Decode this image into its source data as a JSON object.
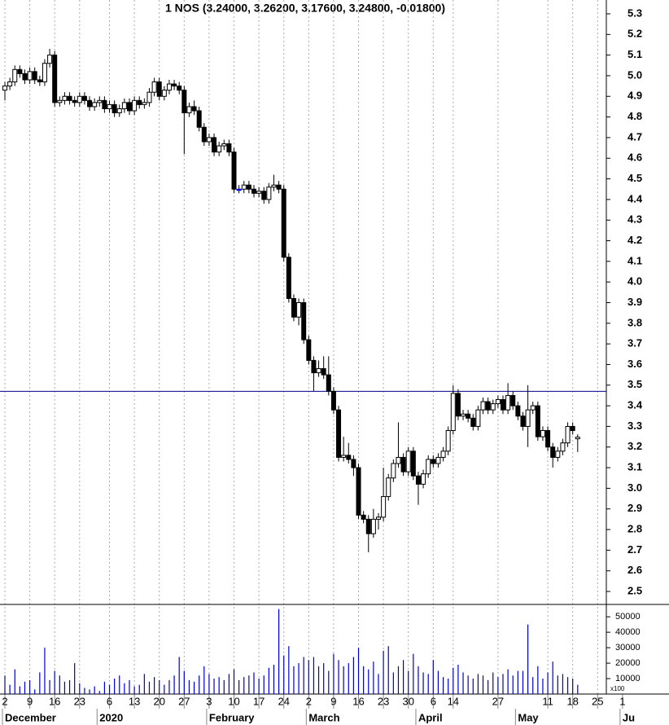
{
  "chart_data": {
    "type": "candlestick",
    "title": "1 NOS (3.24000, 3.26200, 3.17600, 3.24800, -0.01800)",
    "categories": [
      "2",
      null,
      null,
      null,
      null,
      "9",
      null,
      null,
      null,
      null,
      "16",
      null,
      null,
      null,
      null,
      "23",
      null,
      null,
      null,
      null,
      null,
      "6",
      null,
      null,
      null,
      null,
      "13",
      null,
      null,
      null,
      null,
      "20",
      null,
      null,
      null,
      null,
      "27",
      null,
      null,
      null,
      null,
      "3",
      null,
      null,
      null,
      null,
      "10",
      null,
      null,
      null,
      null,
      "17",
      null,
      null,
      null,
      null,
      "24",
      null,
      null,
      null,
      null,
      "2",
      null,
      null,
      null,
      null,
      "9",
      null,
      null,
      null,
      null,
      "16",
      null,
      null,
      null,
      null,
      "23",
      null,
      null,
      null,
      null,
      "30",
      null,
      null,
      null,
      null,
      "6",
      null,
      null,
      null,
      "14",
      null,
      null,
      null,
      null,
      null,
      null,
      null,
      null,
      "27",
      null,
      null,
      null,
      null,
      null,
      null,
      null,
      null,
      null,
      "11",
      null,
      null,
      null,
      null,
      "18",
      null,
      null,
      null,
      null,
      "25",
      null,
      null,
      null,
      null,
      "1"
    ],
    "month_categories": [
      "December",
      null,
      null,
      null,
      null,
      null,
      null,
      null,
      null,
      null,
      null,
      null,
      null,
      null,
      null,
      null,
      null,
      null,
      null,
      "2020",
      null,
      null,
      null,
      null,
      null,
      null,
      null,
      null,
      null,
      null,
      null,
      null,
      null,
      null,
      null,
      null,
      null,
      null,
      null,
      null,
      null,
      "February",
      null,
      null,
      null,
      null,
      null,
      null,
      null,
      null,
      null,
      null,
      null,
      null,
      null,
      null,
      null,
      null,
      null,
      null,
      null,
      "March",
      null,
      null,
      null,
      null,
      null,
      null,
      null,
      null,
      null,
      null,
      null,
      null,
      null,
      null,
      null,
      null,
      null,
      null,
      null,
      null,
      null,
      "April",
      null,
      null,
      null,
      null,
      null,
      null,
      null,
      null,
      null,
      null,
      null,
      null,
      null,
      null,
      null,
      null,
      null,
      null,
      null,
      "May",
      null,
      null,
      null,
      null,
      null,
      null,
      null,
      null,
      null,
      null,
      null,
      null,
      null,
      null,
      null,
      null,
      null,
      null,
      null,
      null,
      "Ju"
    ],
    "open": [
      4.93,
      4.95,
      4.97,
      5.03,
      5.01,
      4.98,
      5.02,
      4.98,
      4.97,
      5.06,
      5.1,
      4.87,
      4.88,
      4.9,
      4.88,
      4.87,
      4.9,
      4.88,
      4.85,
      4.87,
      4.88,
      4.84,
      4.86,
      4.82,
      4.84,
      4.87,
      4.83,
      4.88,
      4.86,
      4.87,
      4.92,
      4.97,
      4.9,
      4.93,
      4.96,
      4.95,
      4.93,
      4.82,
      4.85,
      4.83,
      4.75,
      4.68,
      4.7,
      4.63,
      4.66,
      4.67,
      4.63,
      4.45,
      4.45,
      4.47,
      4.45,
      4.43,
      4.44,
      4.4,
      4.46,
      4.47,
      4.45,
      4.12,
      3.92,
      3.83,
      3.9,
      3.72,
      3.62,
      3.56,
      3.58,
      3.55,
      3.47,
      3.38,
      3.15,
      3.16,
      3.14,
      3.1,
      2.87,
      2.85,
      2.78,
      2.85,
      2.86,
      2.96,
      3.05,
      3.12,
      3.15,
      3.08,
      3.18,
      3.06,
      3.02,
      3.07,
      3.14,
      3.12,
      3.15,
      3.18,
      3.28,
      3.46,
      3.35,
      3.36,
      3.34,
      3.3,
      3.38,
      3.42,
      3.38,
      3.41,
      3.43,
      3.38,
      3.45,
      3.4,
      3.35,
      3.3,
      3.38,
      3.4,
      3.25,
      3.28,
      3.2,
      3.15,
      3.18,
      3.22,
      3.3,
      3.24,
      null,
      null,
      null,
      null,
      null,
      null,
      null,
      null,
      null
    ],
    "high": [
      4.97,
      4.99,
      5.05,
      5.05,
      5.03,
      5.04,
      5.04,
      5.0,
      5.08,
      5.13,
      5.12,
      4.9,
      4.92,
      4.92,
      4.9,
      4.92,
      4.92,
      4.9,
      4.89,
      4.9,
      4.9,
      4.88,
      4.88,
      4.86,
      4.89,
      4.89,
      4.9,
      4.9,
      4.89,
      4.94,
      4.99,
      4.99,
      4.95,
      4.98,
      4.98,
      4.97,
      4.95,
      4.87,
      4.88,
      4.85,
      4.77,
      4.72,
      4.72,
      4.68,
      4.69,
      4.69,
      4.65,
      4.47,
      4.49,
      4.49,
      4.47,
      4.46,
      4.46,
      4.48,
      4.52,
      4.49,
      4.47,
      4.14,
      3.94,
      3.92,
      3.92,
      3.74,
      3.64,
      3.62,
      3.64,
      3.64,
      3.49,
      3.4,
      3.25,
      3.22,
      3.16,
      3.12,
      2.89,
      2.87,
      2.9,
      2.88,
      3.1,
      3.07,
      3.14,
      3.32,
      3.17,
      3.2,
      3.2,
      3.08,
      3.09,
      3.16,
      3.16,
      3.17,
      3.2,
      3.3,
      3.5,
      3.48,
      3.38,
      3.38,
      3.36,
      3.4,
      3.44,
      3.44,
      3.43,
      3.45,
      3.45,
      3.51,
      3.47,
      3.42,
      3.37,
      3.5,
      3.42,
      3.42,
      3.3,
      3.3,
      3.22,
      3.2,
      3.24,
      3.32,
      3.32,
      3.262,
      null,
      null,
      null,
      null,
      null,
      null,
      null,
      null,
      null
    ],
    "low": [
      4.88,
      4.93,
      4.95,
      4.99,
      4.96,
      4.96,
      4.96,
      4.95,
      4.95,
      5.04,
      4.85,
      4.85,
      4.86,
      4.86,
      4.85,
      4.85,
      4.86,
      4.83,
      4.83,
      4.85,
      4.82,
      4.82,
      4.8,
      4.8,
      4.82,
      4.81,
      4.81,
      4.84,
      4.84,
      4.85,
      4.9,
      4.88,
      4.88,
      4.91,
      4.93,
      4.91,
      4.62,
      4.8,
      4.81,
      4.73,
      4.66,
      4.66,
      4.61,
      4.61,
      4.64,
      4.61,
      4.43,
      4.43,
      4.43,
      4.43,
      4.41,
      4.41,
      4.38,
      4.38,
      4.44,
      4.43,
      4.1,
      3.9,
      3.81,
      3.79,
      3.7,
      3.6,
      3.47,
      3.54,
      3.53,
      3.45,
      3.36,
      3.13,
      3.13,
      3.12,
      3.06,
      2.85,
      2.83,
      2.69,
      2.76,
      2.8,
      2.84,
      2.94,
      3.03,
      3.1,
      3.06,
      3.06,
      3.04,
      2.92,
      3.0,
      3.05,
      3.1,
      3.1,
      3.13,
      3.16,
      3.26,
      3.33,
      3.33,
      3.32,
      3.28,
      3.28,
      3.36,
      3.36,
      3.36,
      3.39,
      3.36,
      3.36,
      3.38,
      3.33,
      3.28,
      3.2,
      3.36,
      3.23,
      3.23,
      3.18,
      3.1,
      3.13,
      3.16,
      3.2,
      3.26,
      3.176,
      null,
      null,
      null,
      null,
      null,
      null,
      null,
      null,
      null
    ],
    "close": [
      4.95,
      4.97,
      5.03,
      5.01,
      4.98,
      5.02,
      4.98,
      4.97,
      5.06,
      5.1,
      4.87,
      4.88,
      4.9,
      4.88,
      4.87,
      4.9,
      4.88,
      4.85,
      4.87,
      4.88,
      4.84,
      4.86,
      4.82,
      4.84,
      4.87,
      4.83,
      4.88,
      4.86,
      4.87,
      4.92,
      4.97,
      4.9,
      4.93,
      4.96,
      4.95,
      4.93,
      4.82,
      4.85,
      4.83,
      4.75,
      4.68,
      4.7,
      4.63,
      4.66,
      4.67,
      4.63,
      4.45,
      4.45,
      4.47,
      4.45,
      4.43,
      4.44,
      4.4,
      4.46,
      4.47,
      4.45,
      4.12,
      3.92,
      3.83,
      3.9,
      3.72,
      3.62,
      3.56,
      3.58,
      3.55,
      3.47,
      3.38,
      3.15,
      3.16,
      3.14,
      3.1,
      2.87,
      2.85,
      2.78,
      2.85,
      2.86,
      2.96,
      3.05,
      3.12,
      3.15,
      3.08,
      3.18,
      3.06,
      3.02,
      3.07,
      3.14,
      3.12,
      3.15,
      3.18,
      3.28,
      3.46,
      3.35,
      3.36,
      3.34,
      3.3,
      3.38,
      3.42,
      3.38,
      3.41,
      3.43,
      3.38,
      3.45,
      3.4,
      3.35,
      3.3,
      3.38,
      3.4,
      3.25,
      3.28,
      3.2,
      3.15,
      3.18,
      3.22,
      3.3,
      3.28,
      3.248,
      null,
      null,
      null,
      null,
      null,
      null,
      null,
      null,
      null
    ],
    "up_color": "#ffffff",
    "down_color": "#000000",
    "equal_color": "#0000ff",
    "ylim": [
      2.437,
      5.367
    ],
    "yticks": [
      2.5,
      2.6,
      2.7,
      2.8,
      2.9,
      {
        "value": 3.0,
        "label": "3.0"
      },
      3.1,
      3.2,
      3.3,
      3.4,
      3.5,
      3.6,
      3.7,
      3.8,
      3.9,
      {
        "value": 4.0,
        "label": "4.0"
      },
      4.1,
      4.2,
      4.3,
      4.4,
      4.5,
      4.6,
      4.7,
      4.8,
      4.9,
      {
        "value": 5.0,
        "label": "5.0"
      },
      5.1,
      5.2,
      5.3
    ],
    "hline": 3.47,
    "hline_color": "#00008b",
    "grid": true,
    "volume": {
      "values": [
        12000,
        6000,
        16000,
        5000,
        8000,
        9000,
        3000,
        14000,
        30000,
        9000,
        15000,
        12000,
        8000,
        9000,
        20000,
        7000,
        4000,
        3000,
        5000,
        2000,
        8000,
        6000,
        10000,
        12000,
        7000,
        9000,
        5000,
        6000,
        13000,
        8000,
        11000,
        9000,
        6000,
        9000,
        12000,
        24000,
        15000,
        9000,
        8000,
        12000,
        18000,
        13000,
        10000,
        11000,
        9000,
        13000,
        16000,
        9000,
        11000,
        12000,
        14000,
        10000,
        12000,
        17000,
        19000,
        55000,
        25000,
        31000,
        18000,
        20000,
        24000,
        22000,
        24000,
        18000,
        20000,
        15000,
        26000,
        22000,
        18000,
        20000,
        24000,
        30000,
        18000,
        16000,
        21000,
        13000,
        28000,
        31000,
        14000,
        18000,
        22000,
        15000,
        26000,
        18000,
        14000,
        13000,
        22000,
        15000,
        11000,
        10000,
        17000,
        19000,
        14000,
        12000,
        10000,
        13000,
        12000,
        9000,
        14000,
        11000,
        13000,
        16000,
        12000,
        15000,
        15000,
        45000,
        11000,
        18000,
        10000,
        14000,
        21000,
        12000,
        13000,
        11000,
        10000,
        6000,
        null,
        null,
        null,
        null,
        null,
        null,
        null,
        null,
        null
      ],
      "color": "#0000cc",
      "ylim": [
        0,
        58000
      ],
      "yticks": [
        10000,
        20000,
        30000,
        40000,
        50000
      ],
      "unit_label": "x100"
    }
  }
}
